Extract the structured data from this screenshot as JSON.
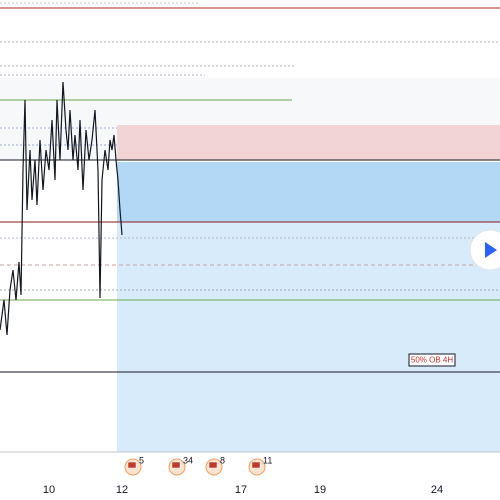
{
  "x_axis": {
    "labels": [
      "10",
      "12",
      "17",
      "19",
      "24"
    ]
  },
  "zone_label": "50% OB 4H",
  "event_badges": [
    "5",
    "34",
    "8",
    "11"
  ]
}
